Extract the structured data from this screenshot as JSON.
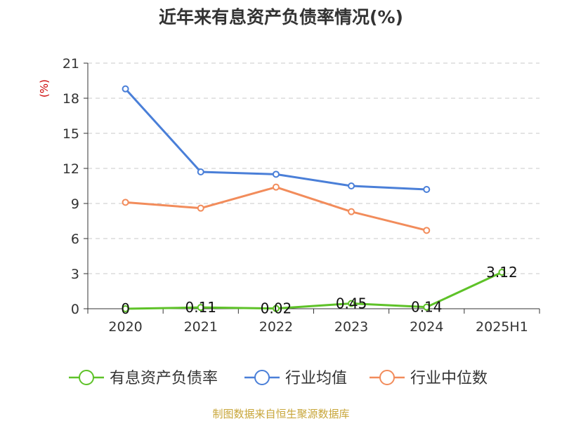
{
  "chart_data": {
    "type": "line",
    "title": "近年来有息资产负债率情况(%)",
    "unit": "(%)",
    "categories": [
      "2020",
      "2021",
      "2022",
      "2023",
      "2024",
      "2025H1"
    ],
    "ylim": [
      0,
      21
    ],
    "yticks": [
      "0",
      "3",
      "6",
      "9",
      "12",
      "15",
      "18",
      "21"
    ],
    "grid": true,
    "legend_position": "bottom",
    "series": [
      {
        "name": "有息资产负债率",
        "color": "#5ec228",
        "values": [
          0,
          0.11,
          0.02,
          0.45,
          0.14,
          3.12
        ],
        "labels": [
          "0",
          "0.11",
          "0.02",
          "0.45",
          "0.14",
          "3.12"
        ]
      },
      {
        "name": "行业均值",
        "color": "#4a7fd8",
        "values": [
          18.8,
          11.7,
          11.5,
          10.5,
          10.2,
          null
        ]
      },
      {
        "name": "行业中位数",
        "color": "#f28c5b",
        "values": [
          9.1,
          8.6,
          10.4,
          8.3,
          6.7,
          null
        ]
      }
    ],
    "source": "制图数据来自恒生聚源数据库"
  }
}
